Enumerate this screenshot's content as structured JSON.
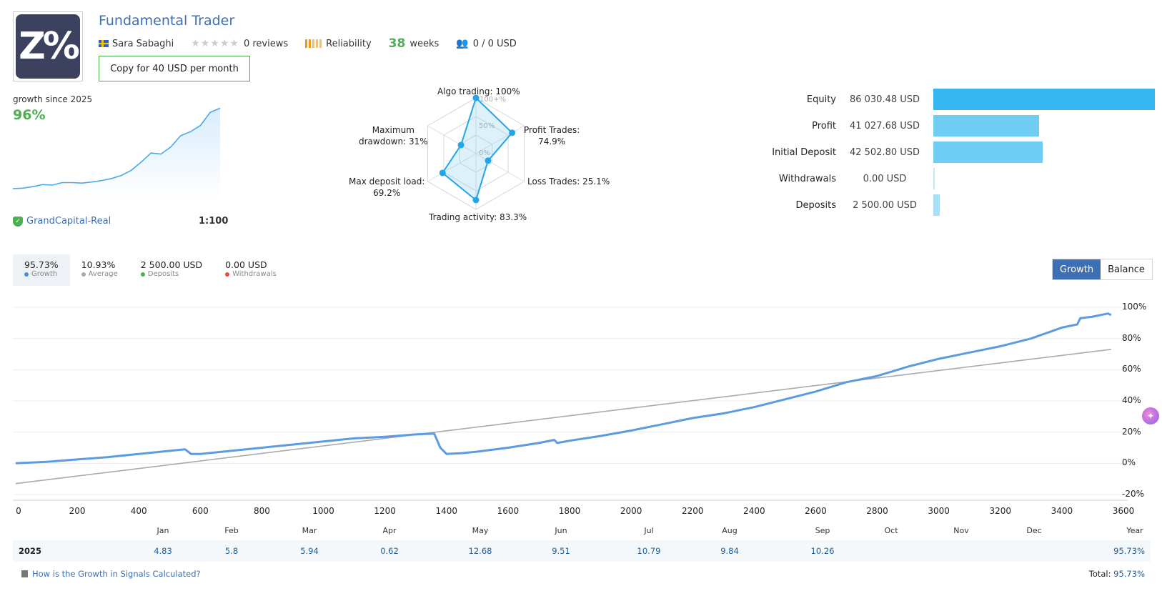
{
  "header": {
    "logo_text": "Z%",
    "title": "Fundamental Trader",
    "author": "Sara Sabaghi",
    "reviews": "0 reviews",
    "reliability": "Reliability",
    "weeks_num": "38",
    "weeks_label": "weeks",
    "subscribers": "0 / 0 USD",
    "copy_button": "Copy for 40 USD per month"
  },
  "summary": {
    "growth_since": "growth since 2025",
    "growth_value": "96%",
    "broker": "GrandCapital-Real",
    "leverage": "1:100"
  },
  "radar": {
    "labels": {
      "algo": "Algo trading: 100%",
      "profit": "Profit Trades:",
      "profit_val": "74.9%",
      "loss": "Loss Trades: 25.1%",
      "activity": "Trading activity: 83.3%",
      "load": "Max deposit load:",
      "load_val": "69.2%",
      "dd": "Maximum",
      "dd_val": "drawdown: 31%"
    },
    "rings": [
      "100+%",
      "50%",
      "0%"
    ],
    "values": {
      "algo": 100,
      "profit": 74.9,
      "loss": 25.1,
      "activity": 83.3,
      "load": 69.2,
      "drawdown": 31
    }
  },
  "balance": {
    "rows": [
      {
        "label": "Equity",
        "value": "86 030.48 USD",
        "amount": 86030.48,
        "color": "#34b6f0"
      },
      {
        "label": "Profit",
        "value": "41 027.68 USD",
        "amount": 41027.68,
        "color": "#6fcdf4"
      },
      {
        "label": "Initial Deposit",
        "value": "42 502.80 USD",
        "amount": 42502.8,
        "color": "#6fcdf4"
      },
      {
        "label": "Withdrawals",
        "value": "0.00 USD",
        "amount": 0,
        "color": "#c3e6f7"
      },
      {
        "label": "Deposits",
        "value": "2 500.00 USD",
        "amount": 2500,
        "color": "#a9dff7"
      }
    ]
  },
  "stats": [
    {
      "value": "95.73%",
      "label": "Growth",
      "color": "#4a90e2"
    },
    {
      "value": "10.93%",
      "label": "Average",
      "color": "#aaaaaa"
    },
    {
      "value": "2 500.00 USD",
      "label": "Deposits",
      "color": "#4caf50"
    },
    {
      "value": "0.00 USD",
      "label": "Withdrawals",
      "color": "#e74c3c"
    }
  ],
  "toggle": {
    "growth": "Growth",
    "balance": "Balance"
  },
  "chart_data": {
    "type": "line",
    "x_ticks": [
      "0",
      "200",
      "400",
      "600",
      "800",
      "1000",
      "1200",
      "1400",
      "1600",
      "1800",
      "2000",
      "2200",
      "2400",
      "2600",
      "2800",
      "3000",
      "3200",
      "3400",
      "3600"
    ],
    "y_ticks": [
      "100%",
      "80%",
      "60%",
      "40%",
      "20%",
      "0%",
      "-20%"
    ],
    "xlim": [
      0,
      3600
    ],
    "ylim": [
      -20,
      100
    ],
    "series": [
      {
        "name": "Growth",
        "color": "#5b9be0",
        "x": [
          0,
          100,
          200,
          300,
          400,
          500,
          550,
          570,
          600,
          700,
          800,
          900,
          1000,
          1100,
          1200,
          1300,
          1360,
          1380,
          1400,
          1450,
          1500,
          1600,
          1700,
          1750,
          1760,
          1800,
          1900,
          2000,
          2100,
          2200,
          2300,
          2400,
          2500,
          2600,
          2700,
          2800,
          2900,
          3000,
          3100,
          3200,
          3300,
          3400,
          3450,
          3460,
          3500,
          3550,
          3560
        ],
        "y": [
          0,
          1,
          2.5,
          4,
          6,
          8,
          9,
          6,
          6,
          8,
          10,
          12,
          14,
          16,
          17,
          18.5,
          19,
          10,
          6,
          6.5,
          7.5,
          10,
          13,
          15,
          13,
          14.5,
          17.5,
          21,
          25,
          29,
          32,
          36,
          41,
          46,
          52,
          56,
          62,
          67,
          71,
          75,
          80,
          87,
          89,
          93,
          94,
          96,
          95
        ]
      },
      {
        "name": "Average",
        "color": "#aaaaaa",
        "x": [
          0,
          3560
        ],
        "y": [
          -13,
          73
        ]
      }
    ]
  },
  "months": [
    "Jan",
    "Feb",
    "Mar",
    "Apr",
    "May",
    "Jun",
    "Jul",
    "Aug",
    "Sep",
    "Oct",
    "Nov",
    "Dec",
    "Year"
  ],
  "year_row": {
    "year": "2025",
    "values": [
      "4.83",
      "5.8",
      "5.94",
      "0.62",
      "12.68",
      "9.51",
      "10.79",
      "9.84",
      "10.26",
      "",
      "",
      "",
      "95.73%"
    ]
  },
  "footer": {
    "how_link": "How is the Growth in Signals Calculated?",
    "total_label": "Total:",
    "total_value": "95.73%"
  },
  "mini_chart": {
    "values": [
      0,
      0.5,
      2,
      4,
      3.5,
      6,
      6,
      5.5,
      6.5,
      8,
      10,
      13,
      18,
      26,
      35,
      34,
      41,
      52,
      56,
      62,
      75,
      79
    ]
  }
}
